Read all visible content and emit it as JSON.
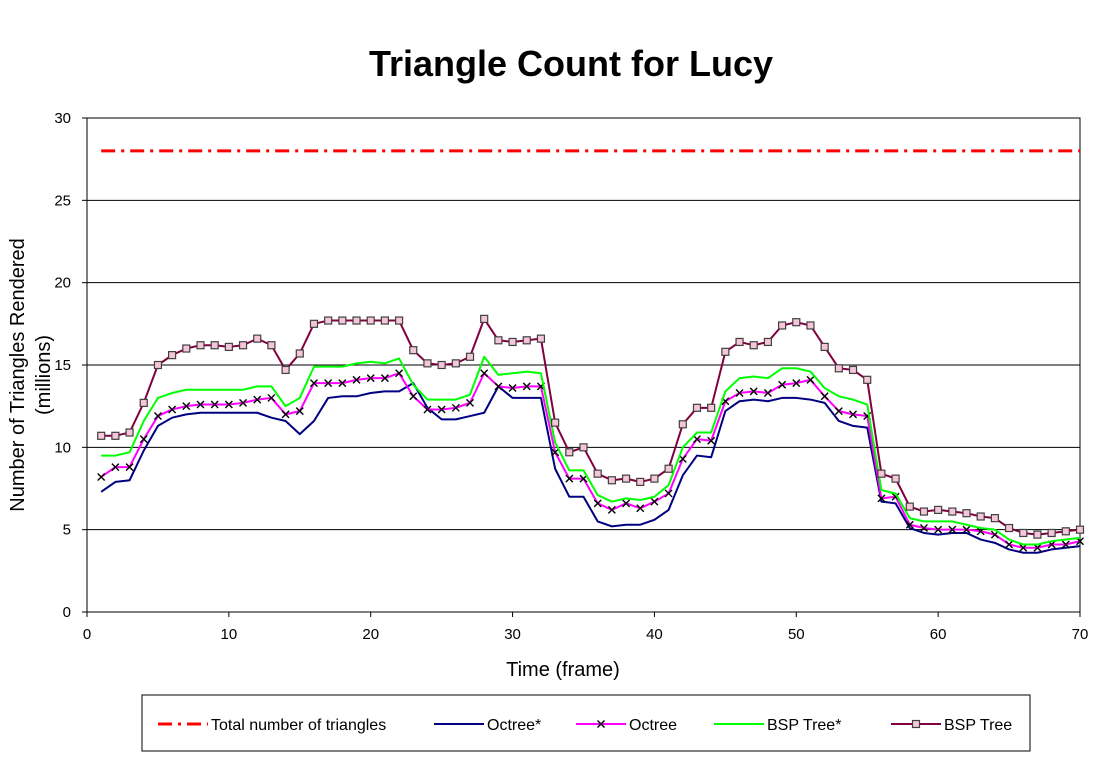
{
  "chart_data": {
    "type": "line",
    "title": "Triangle Count for Lucy",
    "xlabel": "Time (frame)",
    "ylabel_line1": "Number of Triangles Rendered",
    "ylabel_line2": "(millions)",
    "xlim": [
      0,
      70
    ],
    "ylim": [
      0,
      30
    ],
    "x_ticks": [
      0,
      10,
      20,
      30,
      40,
      50,
      60,
      70
    ],
    "y_ticks": [
      0,
      5,
      10,
      15,
      20,
      25,
      30
    ],
    "grid": "horizontal",
    "legend_position": "bottom",
    "x": [
      1,
      2,
      3,
      4,
      5,
      6,
      7,
      8,
      9,
      10,
      11,
      12,
      13,
      14,
      15,
      16,
      17,
      18,
      19,
      20,
      21,
      22,
      23,
      24,
      25,
      26,
      27,
      28,
      29,
      30,
      31,
      32,
      33,
      34,
      35,
      36,
      37,
      38,
      39,
      40,
      41,
      42,
      43,
      44,
      45,
      46,
      47,
      48,
      49,
      50,
      51,
      52,
      53,
      54,
      55,
      56,
      57,
      58,
      59,
      60,
      61,
      62,
      63,
      64,
      65,
      66,
      67,
      68,
      69,
      70
    ],
    "series": [
      {
        "name": "Total number of triangles",
        "color": "#ff0000",
        "style": "dashdot",
        "marker": "none",
        "values": [
          28,
          28,
          28,
          28,
          28,
          28,
          28,
          28,
          28,
          28,
          28,
          28,
          28,
          28,
          28,
          28,
          28,
          28,
          28,
          28,
          28,
          28,
          28,
          28,
          28,
          28,
          28,
          28,
          28,
          28,
          28,
          28,
          28,
          28,
          28,
          28,
          28,
          28,
          28,
          28,
          28,
          28,
          28,
          28,
          28,
          28,
          28,
          28,
          28,
          28,
          28,
          28,
          28,
          28,
          28,
          28,
          28,
          28,
          28,
          28,
          28,
          28,
          28,
          28,
          28,
          28,
          28,
          28,
          28,
          28
        ]
      },
      {
        "name": "Octree*",
        "color": "#000080",
        "style": "solid",
        "marker": "none",
        "values": [
          7.3,
          7.9,
          8.0,
          9.8,
          11.3,
          11.8,
          12.0,
          12.1,
          12.1,
          12.1,
          12.1,
          12.1,
          11.8,
          11.6,
          10.8,
          11.6,
          13.0,
          13.1,
          13.1,
          13.3,
          13.4,
          13.4,
          13.9,
          12.4,
          11.7,
          11.7,
          11.9,
          12.1,
          13.7,
          13.0,
          13.0,
          13.0,
          8.7,
          7.0,
          7.0,
          5.5,
          5.2,
          5.3,
          5.3,
          5.6,
          6.2,
          8.3,
          9.5,
          9.4,
          12.2,
          12.8,
          12.9,
          12.8,
          13.0,
          13.0,
          12.9,
          12.7,
          11.6,
          11.3,
          11.2,
          6.7,
          6.6,
          5.1,
          4.8,
          4.7,
          4.8,
          4.8,
          4.4,
          4.2,
          3.8,
          3.6,
          3.6,
          3.8,
          3.9,
          4.0
        ]
      },
      {
        "name": "Octree",
        "color": "#ff00ff",
        "style": "solid",
        "marker": "x",
        "values": [
          8.2,
          8.8,
          8.8,
          10.5,
          11.9,
          12.3,
          12.5,
          12.6,
          12.6,
          12.6,
          12.7,
          12.9,
          13.0,
          12.0,
          12.2,
          13.9,
          13.9,
          13.9,
          14.1,
          14.2,
          14.2,
          14.5,
          13.1,
          12.3,
          12.3,
          12.4,
          12.7,
          14.5,
          13.7,
          13.6,
          13.7,
          13.7,
          9.7,
          8.1,
          8.1,
          6.6,
          6.2,
          6.6,
          6.3,
          6.7,
          7.2,
          9.3,
          10.5,
          10.4,
          12.8,
          13.3,
          13.4,
          13.3,
          13.8,
          13.9,
          14.1,
          13.1,
          12.2,
          12.0,
          11.9,
          6.9,
          7.0,
          5.3,
          5.1,
          5.0,
          5.0,
          5.0,
          4.9,
          4.7,
          4.1,
          3.9,
          3.9,
          4.1,
          4.1,
          4.3
        ]
      },
      {
        "name": "BSP Tree*",
        "color": "#00ff00",
        "style": "solid",
        "marker": "none",
        "values": [
          9.5,
          9.5,
          9.7,
          11.6,
          13.0,
          13.3,
          13.5,
          13.5,
          13.5,
          13.5,
          13.5,
          13.7,
          13.7,
          12.5,
          13.0,
          14.9,
          14.9,
          14.9,
          15.1,
          15.2,
          15.1,
          15.4,
          13.8,
          12.9,
          12.9,
          12.9,
          13.2,
          15.5,
          14.4,
          14.5,
          14.6,
          14.5,
          10.3,
          8.6,
          8.6,
          7.1,
          6.7,
          6.9,
          6.8,
          7.0,
          7.7,
          10.0,
          10.9,
          10.9,
          13.4,
          14.2,
          14.3,
          14.2,
          14.8,
          14.8,
          14.6,
          13.6,
          13.1,
          12.9,
          12.6,
          7.4,
          7.2,
          5.7,
          5.5,
          5.5,
          5.5,
          5.3,
          5.1,
          5.0,
          4.4,
          4.1,
          4.1,
          4.3,
          4.4,
          4.5
        ]
      },
      {
        "name": "BSP Tree",
        "color": "#800040",
        "style": "solid",
        "marker": "square",
        "values": [
          10.7,
          10.7,
          10.9,
          12.7,
          15.0,
          15.6,
          16.0,
          16.2,
          16.2,
          16.1,
          16.2,
          16.6,
          16.2,
          14.7,
          15.7,
          17.5,
          17.7,
          17.7,
          17.7,
          17.7,
          17.7,
          17.7,
          15.9,
          15.1,
          15.0,
          15.1,
          15.5,
          17.8,
          16.5,
          16.4,
          16.5,
          16.6,
          11.5,
          9.7,
          10.0,
          8.4,
          8.0,
          8.1,
          7.9,
          8.1,
          8.7,
          11.4,
          12.4,
          12.4,
          15.8,
          16.4,
          16.2,
          16.4,
          17.4,
          17.6,
          17.4,
          16.1,
          14.8,
          14.7,
          14.1,
          8.4,
          8.1,
          6.4,
          6.1,
          6.2,
          6.1,
          6.0,
          5.8,
          5.7,
          5.1,
          4.8,
          4.7,
          4.8,
          4.9,
          5.0
        ]
      }
    ]
  }
}
